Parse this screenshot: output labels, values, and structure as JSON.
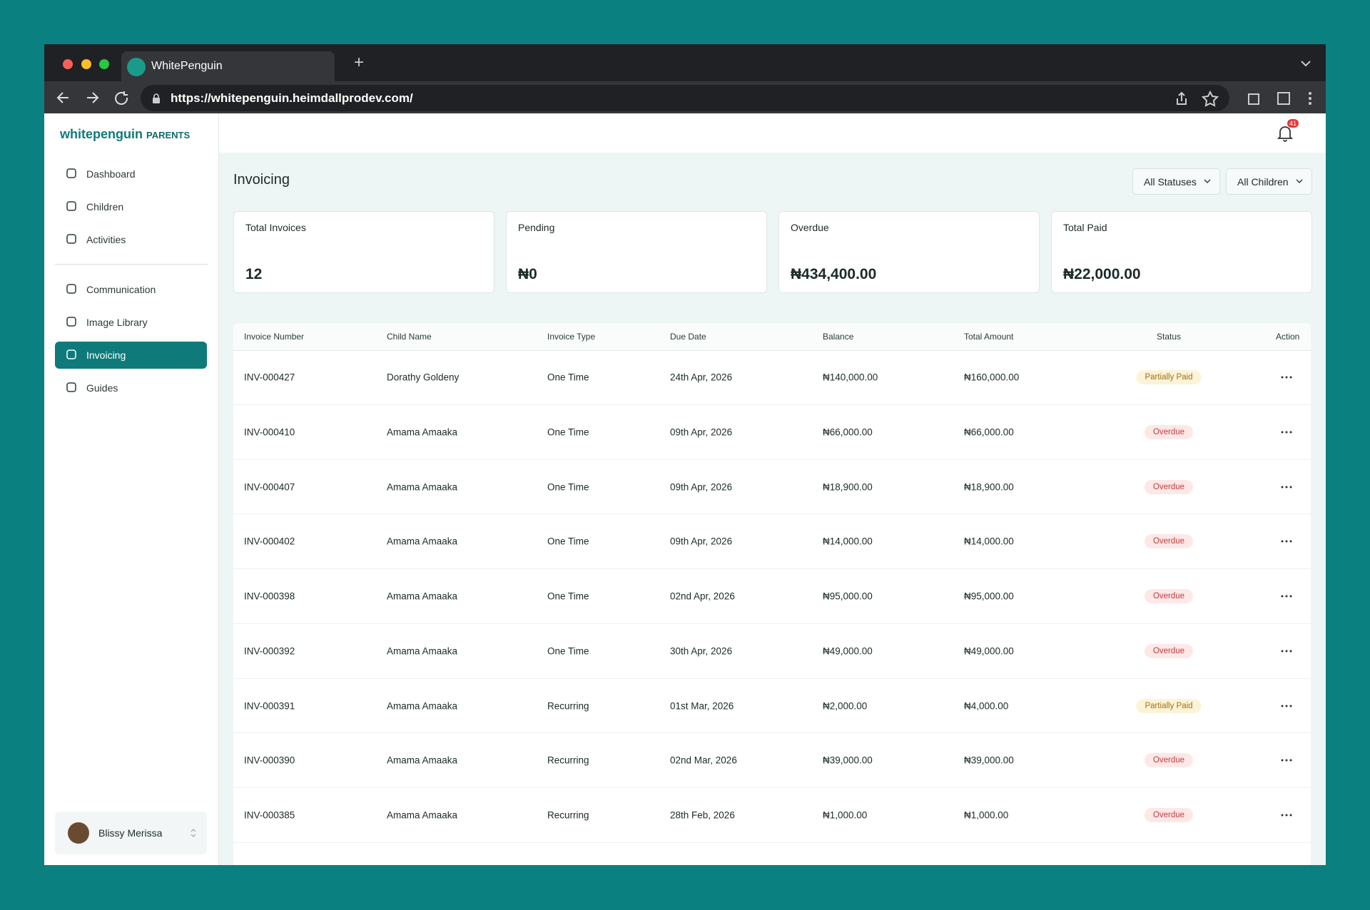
{
  "browser": {
    "tab_title": "WhitePenguin",
    "url": "https://whitepenguin.heimdallprodev.com/"
  },
  "sidebar": {
    "logo": "whitepenguin",
    "logo_suffix": "PARENTS",
    "nav_top": [
      "Dashboard",
      "Children",
      "Activities"
    ],
    "nav_bottom": [
      "Communication",
      "Image Library",
      "Invoicing",
      "Guides"
    ],
    "active": "Invoicing",
    "user": "Blissy Merissa"
  },
  "header": {
    "notifications": "41"
  },
  "page": {
    "title": "Invoicing",
    "filters": [
      "All Statuses",
      "All Children"
    ]
  },
  "stats": [
    {
      "label": "Total Invoices",
      "value": "12"
    },
    {
      "label": "Pending",
      "value": "₦0"
    },
    {
      "label": "Overdue",
      "value": "₦434,400.00"
    },
    {
      "label": "Total Paid",
      "value": "₦22,000.00"
    }
  ],
  "table": {
    "headers": [
      "Invoice Number",
      "Child Name",
      "Invoice Type",
      "Due Date",
      "Balance",
      "Total Amount",
      "Status",
      "Action"
    ],
    "rows": [
      [
        "INV-000427",
        "Dorathy Goldeny",
        "One Time",
        "24th Apr, 2026",
        "₦140,000.00",
        "₦160,000.00",
        "Partially Paid"
      ],
      [
        "INV-000410",
        "Amama Amaaka",
        "One Time",
        "09th Apr, 2026",
        "₦66,000.00",
        "₦66,000.00",
        "Overdue"
      ],
      [
        "INV-000407",
        "Amama Amaaka",
        "One Time",
        "09th Apr, 2026",
        "₦18,900.00",
        "₦18,900.00",
        "Overdue"
      ],
      [
        "INV-000402",
        "Amama Amaaka",
        "One Time",
        "09th Apr, 2026",
        "₦14,000.00",
        "₦14,000.00",
        "Overdue"
      ],
      [
        "INV-000398",
        "Amama Amaaka",
        "One Time",
        "02nd Apr, 2026",
        "₦95,000.00",
        "₦95,000.00",
        "Overdue"
      ],
      [
        "INV-000392",
        "Amama Amaaka",
        "One Time",
        "30th Apr, 2026",
        "₦49,000.00",
        "₦49,000.00",
        "Overdue"
      ],
      [
        "INV-000391",
        "Amama Amaaka",
        "Recurring",
        "01st Mar, 2026",
        "₦2,000.00",
        "₦4,000.00",
        "Partially Paid"
      ],
      [
        "INV-000390",
        "Amama Amaaka",
        "Recurring",
        "02nd Mar, 2026",
        "₦39,000.00",
        "₦39,000.00",
        "Overdue"
      ],
      [
        "INV-000385",
        "Amama Amaaka",
        "Recurring",
        "28th Feb, 2026",
        "₦1,000.00",
        "₦1,000.00",
        "Overdue"
      ]
    ]
  }
}
